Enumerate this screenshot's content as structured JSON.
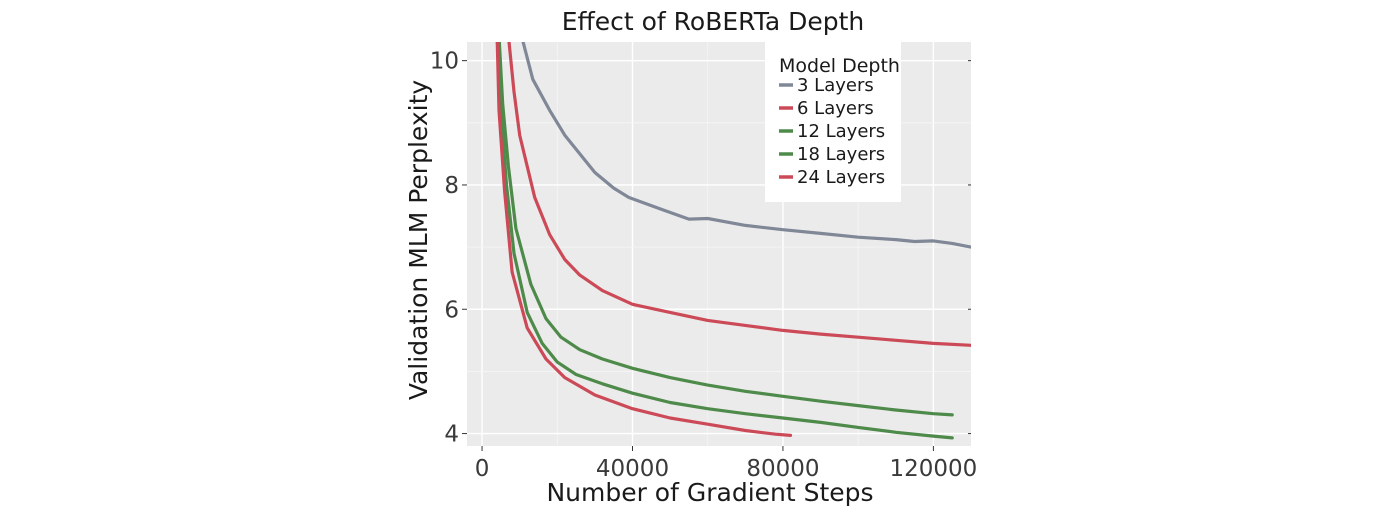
{
  "chart_data": {
    "type": "line",
    "title": "Effect of RoBERTa Depth",
    "xlabel": "Number of Gradient Steps",
    "ylabel": "Validation MLM Perplexity",
    "xlim": [
      -4000,
      130000
    ],
    "ylim": [
      3.8,
      10.3
    ],
    "x_ticks": [
      0,
      40000,
      80000,
      120000
    ],
    "x_tick_labels": [
      "0",
      "40000",
      "80000",
      "120000"
    ],
    "y_ticks": [
      4,
      6,
      8,
      10
    ],
    "y_tick_labels": [
      "4",
      "6",
      "8",
      "10"
    ],
    "grid": true,
    "legend": {
      "title": "Model Depth",
      "position": "top-right"
    },
    "series": [
      {
        "name": "3 Layers",
        "color": "#808897",
        "points": [
          [
            10500,
            10.4
          ],
          [
            13500,
            9.7
          ],
          [
            18000,
            9.2
          ],
          [
            22000,
            8.8
          ],
          [
            30000,
            8.2
          ],
          [
            35000,
            7.95
          ],
          [
            39000,
            7.8
          ],
          [
            48000,
            7.6
          ],
          [
            55000,
            7.45
          ],
          [
            60000,
            7.46
          ],
          [
            70000,
            7.35
          ],
          [
            80000,
            7.28
          ],
          [
            90000,
            7.22
          ],
          [
            100000,
            7.16
          ],
          [
            110000,
            7.12
          ],
          [
            115000,
            7.09
          ],
          [
            120000,
            7.1
          ],
          [
            125000,
            7.06
          ],
          [
            130000,
            7.0
          ]
        ]
      },
      {
        "name": "6 Layers",
        "color": "#cc4a57",
        "points": [
          [
            7000,
            10.4
          ],
          [
            8500,
            9.5
          ],
          [
            10000,
            8.8
          ],
          [
            14000,
            7.8
          ],
          [
            18000,
            7.2
          ],
          [
            22000,
            6.8
          ],
          [
            26000,
            6.55
          ],
          [
            32000,
            6.3
          ],
          [
            40000,
            6.08
          ],
          [
            50000,
            5.95
          ],
          [
            60000,
            5.82
          ],
          [
            70000,
            5.74
          ],
          [
            80000,
            5.66
          ],
          [
            90000,
            5.6
          ],
          [
            100000,
            5.55
          ],
          [
            110000,
            5.5
          ],
          [
            120000,
            5.45
          ],
          [
            130000,
            5.42
          ]
        ]
      },
      {
        "name": "12 Layers",
        "color": "#4e8a4a",
        "points": [
          [
            4500,
            10.4
          ],
          [
            5500,
            9.3
          ],
          [
            7000,
            8.3
          ],
          [
            9000,
            7.3
          ],
          [
            13000,
            6.4
          ],
          [
            17000,
            5.85
          ],
          [
            21000,
            5.55
          ],
          [
            26000,
            5.35
          ],
          [
            32000,
            5.2
          ],
          [
            40000,
            5.05
          ],
          [
            50000,
            4.9
          ],
          [
            60000,
            4.78
          ],
          [
            70000,
            4.68
          ],
          [
            80000,
            4.6
          ],
          [
            90000,
            4.52
          ],
          [
            100000,
            4.45
          ],
          [
            110000,
            4.38
          ],
          [
            120000,
            4.32
          ],
          [
            125000,
            4.3
          ]
        ]
      },
      {
        "name": "18 Layers",
        "color": "#4e8a4a",
        "points": [
          [
            4000,
            10.4
          ],
          [
            5000,
            9.2
          ],
          [
            6500,
            8.0
          ],
          [
            8500,
            6.9
          ],
          [
            12000,
            5.95
          ],
          [
            16000,
            5.45
          ],
          [
            20000,
            5.15
          ],
          [
            25000,
            4.95
          ],
          [
            32000,
            4.8
          ],
          [
            40000,
            4.65
          ],
          [
            50000,
            4.5
          ],
          [
            60000,
            4.4
          ],
          [
            70000,
            4.32
          ],
          [
            80000,
            4.25
          ],
          [
            90000,
            4.18
          ],
          [
            100000,
            4.1
          ],
          [
            110000,
            4.02
          ],
          [
            120000,
            3.96
          ],
          [
            125000,
            3.93
          ]
        ]
      },
      {
        "name": "24 Layers",
        "color": "#cc4a57",
        "points": [
          [
            4000,
            10.4
          ],
          [
            4500,
            9.2
          ],
          [
            6000,
            7.9
          ],
          [
            8000,
            6.6
          ],
          [
            12000,
            5.7
          ],
          [
            17000,
            5.2
          ],
          [
            22000,
            4.9
          ],
          [
            30000,
            4.62
          ],
          [
            40000,
            4.4
          ],
          [
            50000,
            4.25
          ],
          [
            60000,
            4.15
          ],
          [
            70000,
            4.05
          ],
          [
            78000,
            3.99
          ],
          [
            82000,
            3.97
          ]
        ]
      }
    ]
  }
}
